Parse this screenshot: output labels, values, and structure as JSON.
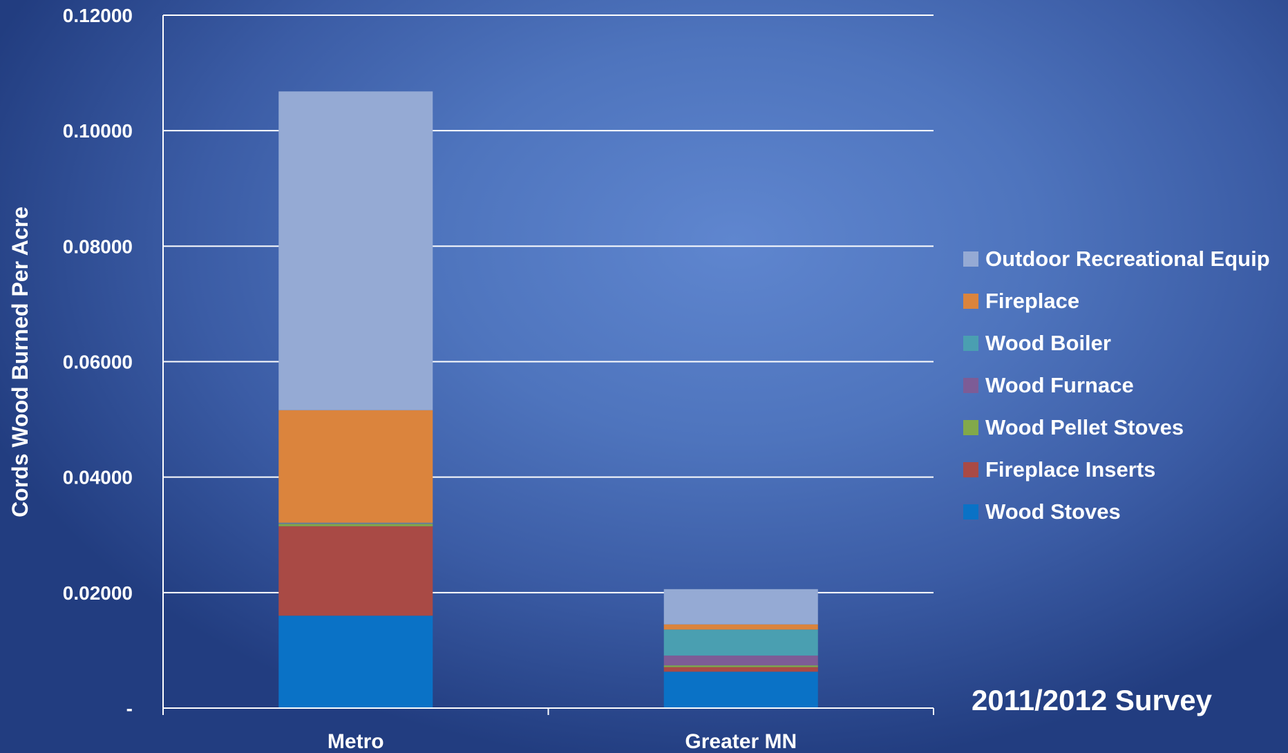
{
  "chart_data": {
    "type": "bar",
    "stacked": true,
    "categories": [
      "Metro",
      "Greater MN"
    ],
    "ylabel": "Cords Wood Burned Per Acre",
    "ylim": [
      0,
      0.12
    ],
    "y_ticks": [
      {
        "value": 0,
        "label": "-"
      },
      {
        "value": 0.02,
        "label": "0.02000"
      },
      {
        "value": 0.04,
        "label": "0.04000"
      },
      {
        "value": 0.06,
        "label": "0.06000"
      },
      {
        "value": 0.08,
        "label": "0.08000"
      },
      {
        "value": 0.1,
        "label": "0.10000"
      },
      {
        "value": 0.12,
        "label": "0.12000"
      }
    ],
    "grid": true,
    "legend_position": "right",
    "series": [
      {
        "name": "Wood Stoves",
        "color": "#0a72c6",
        "values": [
          0.016,
          0.0063
        ]
      },
      {
        "name": "Fireplace Inserts",
        "color": "#a94a45",
        "values": [
          0.0155,
          0.0008
        ]
      },
      {
        "name": "Wood Pellet Stoves",
        "color": "#82a94a",
        "values": [
          0.0004,
          0.0003
        ]
      },
      {
        "name": "Wood Furnace",
        "color": "#7d5c96",
        "values": [
          0.0001,
          0.0017
        ]
      },
      {
        "name": "Wood Boiler",
        "color": "#4a9fb1",
        "values": [
          0.0001,
          0.0045
        ]
      },
      {
        "name": "Fireplace",
        "color": "#db843d",
        "values": [
          0.0195,
          0.0009
        ]
      },
      {
        "name": "Outdoor Recreational Equip",
        "color": "#95aad4",
        "values": [
          0.0552,
          0.0061
        ]
      }
    ],
    "annotation": "2011/2012 Survey"
  }
}
